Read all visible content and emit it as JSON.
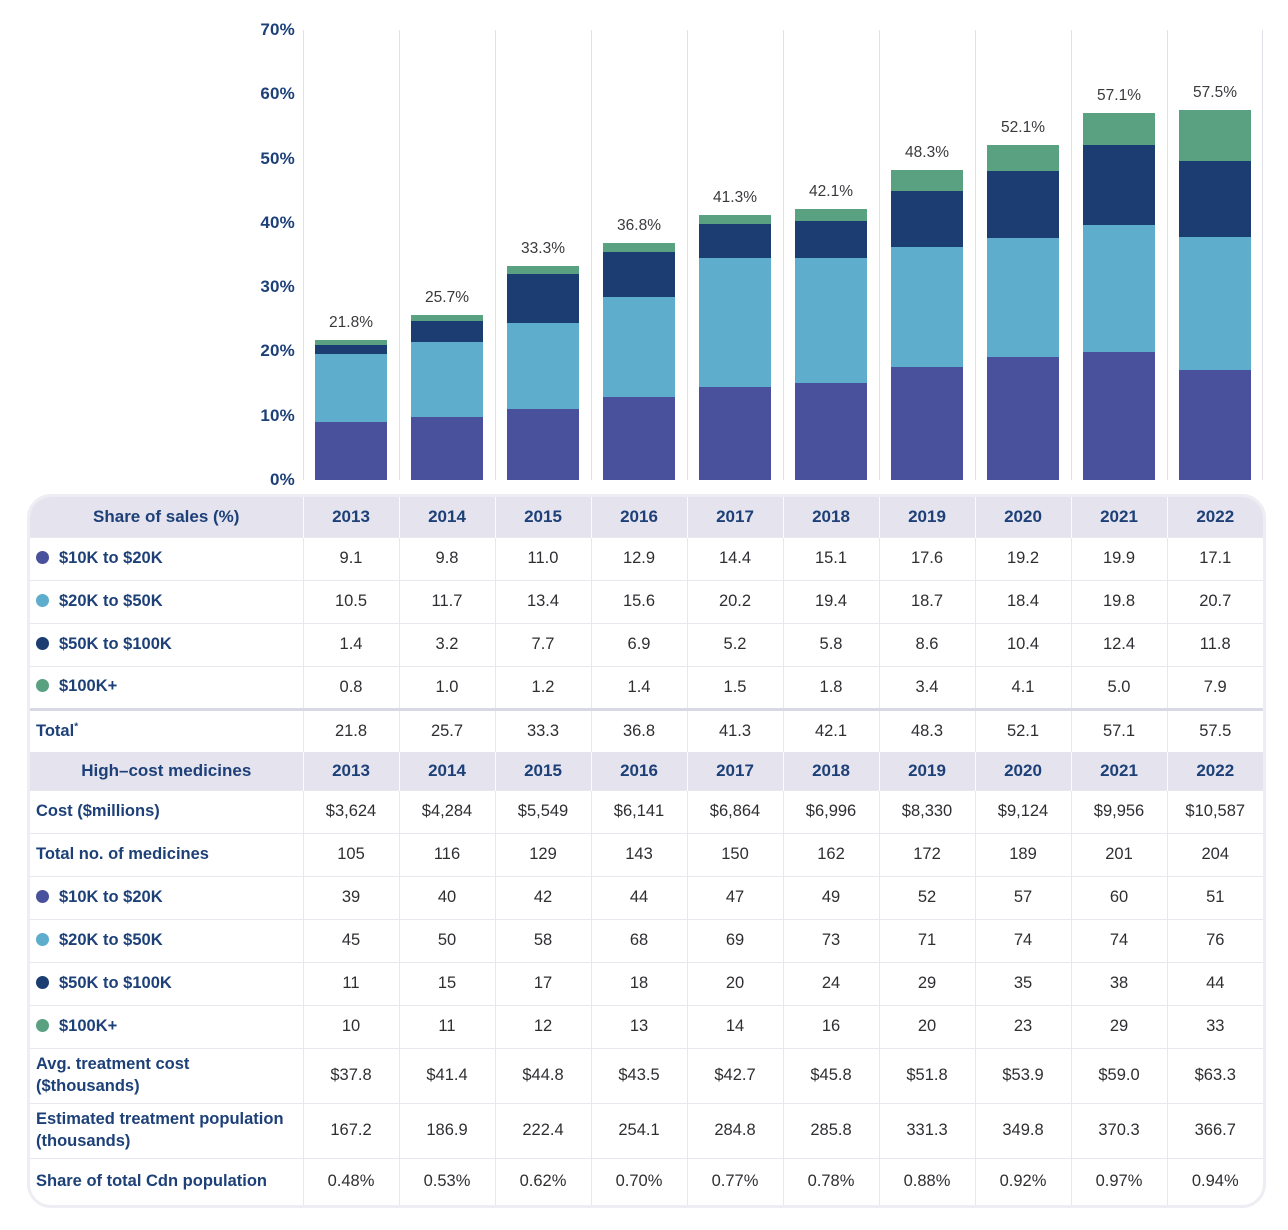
{
  "colors": {
    "indigo": "#4A519C",
    "lightblue": "#5FADCC",
    "navy": "#1B3D72",
    "green": "#5AA181",
    "navy_text": "#1D4078",
    "value_text": "#2F2F33",
    "band_bg": "#E4E3EE",
    "gridline": "#E2E1E9"
  },
  "chart_data": {
    "type": "bar",
    "stacked": true,
    "title": "",
    "xlabel": "",
    "ylabel": "",
    "x": [
      "2013",
      "2014",
      "2015",
      "2016",
      "2017",
      "2018",
      "2019",
      "2020",
      "2021",
      "2022"
    ],
    "series": [
      {
        "name": "$10K to $20K",
        "color": "#4A519C",
        "values": [
          9.1,
          9.8,
          11.0,
          12.9,
          14.4,
          15.1,
          17.6,
          19.2,
          19.9,
          17.1
        ]
      },
      {
        "name": "$20K to $50K",
        "color": "#5FADCC",
        "values": [
          10.5,
          11.7,
          13.4,
          15.6,
          20.2,
          19.4,
          18.7,
          18.4,
          19.8,
          20.7
        ]
      },
      {
        "name": "$50K to $100K",
        "color": "#1B3D72",
        "values": [
          1.4,
          3.2,
          7.7,
          6.9,
          5.2,
          5.8,
          8.6,
          10.4,
          12.4,
          11.8
        ]
      },
      {
        "name": "$100K+",
        "color": "#5AA181",
        "values": [
          0.8,
          1.0,
          1.2,
          1.4,
          1.5,
          1.8,
          3.4,
          4.1,
          5.0,
          7.9
        ]
      }
    ],
    "totals": [
      21.8,
      25.7,
      33.3,
      36.8,
      41.3,
      42.1,
      48.3,
      52.1,
      57.1,
      57.5
    ],
    "total_labels": [
      "21.8%",
      "25.7%",
      "33.3%",
      "36.8%",
      "41.3%",
      "42.1%",
      "48.3%",
      "52.1%",
      "57.1%",
      "57.5%"
    ],
    "y_tick_labels": [
      "0%",
      "10%",
      "20%",
      "30%",
      "40%",
      "50%",
      "60%",
      "70%"
    ],
    "ylim": [
      0,
      70
    ],
    "ytick_step": 10,
    "grid": "vertical",
    "legend_position": "in-table"
  },
  "table": {
    "years": [
      "2013",
      "2014",
      "2015",
      "2016",
      "2017",
      "2018",
      "2019",
      "2020",
      "2021",
      "2022"
    ],
    "sections": [
      {
        "title": "Share of sales (%)",
        "rows": [
          {
            "dot": "#4A519C",
            "label": "$10K to $20K",
            "values": [
              "9.1",
              "9.8",
              "11.0",
              "12.9",
              "14.4",
              "15.1",
              "17.6",
              "19.2",
              "19.9",
              "17.1"
            ]
          },
          {
            "dot": "#5FADCC",
            "label": "$20K to $50K",
            "values": [
              "10.5",
              "11.7",
              "13.4",
              "15.6",
              "20.2",
              "19.4",
              "18.7",
              "18.4",
              "19.8",
              "20.7"
            ]
          },
          {
            "dot": "#1B3D72",
            "label": "$50K to $100K",
            "values": [
              "1.4",
              "3.2",
              "7.7",
              "6.9",
              "5.2",
              "5.8",
              "8.6",
              "10.4",
              "12.4",
              "11.8"
            ]
          },
          {
            "dot": "#5AA181",
            "label": "$100K+",
            "values": [
              "0.8",
              "1.0",
              "1.2",
              "1.4",
              "1.5",
              "1.8",
              "3.4",
              "4.1",
              "5.0",
              "7.9"
            ]
          },
          {
            "label": "Total",
            "sup": "*",
            "total": true,
            "values": [
              "21.8",
              "25.7",
              "33.3",
              "36.8",
              "41.3",
              "42.1",
              "48.3",
              "52.1",
              "57.1",
              "57.5"
            ]
          }
        ]
      },
      {
        "title": "High–cost medicines",
        "rows": [
          {
            "label": "Cost ($millions)",
            "values": [
              "$3,624",
              "$4,284",
              "$5,549",
              "$6,141",
              "$6,864",
              "$6,996",
              "$8,330",
              "$9,124",
              "$9,956",
              "$10,587"
            ]
          },
          {
            "label": "Total no. of medicines",
            "values": [
              "105",
              "116",
              "129",
              "143",
              "150",
              "162",
              "172",
              "189",
              "201",
              "204"
            ]
          },
          {
            "dot": "#4A519C",
            "label": "$10K to $20K",
            "values": [
              "39",
              "40",
              "42",
              "44",
              "47",
              "49",
              "52",
              "57",
              "60",
              "51"
            ]
          },
          {
            "dot": "#5FADCC",
            "label": "$20K to $50K",
            "values": [
              "45",
              "50",
              "58",
              "68",
              "69",
              "73",
              "71",
              "74",
              "74",
              "76"
            ]
          },
          {
            "dot": "#1B3D72",
            "label": "$50K to $100K",
            "values": [
              "11",
              "15",
              "17",
              "18",
              "20",
              "24",
              "29",
              "35",
              "38",
              "44"
            ]
          },
          {
            "dot": "#5AA181",
            "label": "$100K+",
            "values": [
              "10",
              "11",
              "12",
              "13",
              "14",
              "16",
              "20",
              "23",
              "29",
              "33"
            ]
          },
          {
            "label": "Avg. treatment cost",
            "label2": "($thousands)",
            "values": [
              "$37.8",
              "$41.4",
              "$44.8",
              "$43.5",
              "$42.7",
              "$45.8",
              "$51.8",
              "$53.9",
              "$59.0",
              "$63.3"
            ]
          },
          {
            "label": "Estimated treatment population",
            "label2": "(thousands)",
            "values": [
              "167.2",
              "186.9",
              "222.4",
              "254.1",
              "284.8",
              "285.8",
              "331.3",
              "349.8",
              "370.3",
              "366.7"
            ]
          },
          {
            "label": "Share of total Cdn population",
            "values": [
              "0.48%",
              "0.53%",
              "0.62%",
              "0.70%",
              "0.77%",
              "0.78%",
              "0.88%",
              "0.92%",
              "0.97%",
              "0.94%"
            ]
          }
        ]
      }
    ]
  }
}
